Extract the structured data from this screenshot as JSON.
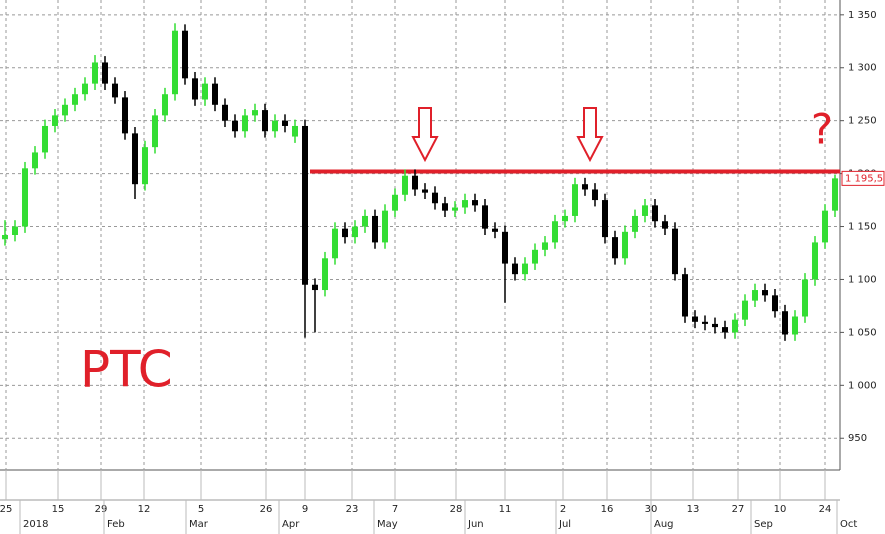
{
  "chart_data": {
    "type": "candlestick",
    "title": "PTC",
    "annotation": "?",
    "series": [
      {
        "up_color": "#33dd33",
        "down_color": "#000000",
        "open": [
          1138,
          1142,
          1150,
          1205,
          1220,
          1245,
          1255,
          1265,
          1275,
          1285,
          1305,
          1285,
          1272,
          1238,
          1190,
          1225,
          1255,
          1275,
          1335,
          1290,
          1270,
          1285,
          1265,
          1250,
          1240,
          1255,
          1260,
          1240,
          1250,
          1235,
          1245,
          1095,
          1090,
          1120,
          1148,
          1140,
          1150,
          1160,
          1135,
          1165,
          1180,
          1198,
          1185,
          1182,
          1172,
          1165,
          1168,
          1175,
          1170,
          1148,
          1145,
          1115,
          1105,
          1115,
          1128,
          1135,
          1155,
          1160,
          1190,
          1185,
          1175,
          1140,
          1120,
          1145,
          1160,
          1170,
          1155,
          1148,
          1105,
          1065,
          1060,
          1058,
          1055,
          1050,
          1062,
          1080,
          1090,
          1085,
          1070,
          1048,
          1065,
          1100,
          1135,
          1165
        ],
        "high": [
          1156,
          1156,
          1211,
          1226,
          1251,
          1261,
          1271,
          1281,
          1291,
          1312,
          1311,
          1291,
          1278,
          1244,
          1231,
          1261,
          1281,
          1342,
          1341,
          1296,
          1291,
          1291,
          1271,
          1256,
          1261,
          1266,
          1266,
          1256,
          1256,
          1251,
          1251,
          1101,
          1126,
          1154,
          1154,
          1156,
          1166,
          1166,
          1171,
          1186,
          1204,
          1204,
          1191,
          1188,
          1178,
          1174,
          1181,
          1181,
          1176,
          1154,
          1151,
          1121,
          1121,
          1134,
          1141,
          1161,
          1166,
          1196,
          1196,
          1191,
          1181,
          1146,
          1151,
          1166,
          1176,
          1176,
          1161,
          1154,
          1111,
          1071,
          1066,
          1064,
          1061,
          1068,
          1086,
          1096,
          1096,
          1091,
          1076,
          1071,
          1106,
          1141,
          1171,
          1199
        ],
        "low": [
          1132,
          1136,
          1144,
          1199,
          1214,
          1239,
          1249,
          1259,
          1269,
          1279,
          1279,
          1266,
          1232,
          1176,
          1184,
          1219,
          1249,
          1269,
          1284,
          1264,
          1264,
          1259,
          1244,
          1234,
          1234,
          1249,
          1234,
          1234,
          1239,
          1229,
          1045,
          1050,
          1084,
          1114,
          1134,
          1134,
          1144,
          1129,
          1129,
          1159,
          1174,
          1179,
          1176,
          1166,
          1159,
          1159,
          1162,
          1164,
          1142,
          1139,
          1078,
          1099,
          1099,
          1109,
          1122,
          1129,
          1149,
          1154,
          1179,
          1169,
          1134,
          1114,
          1114,
          1139,
          1154,
          1149,
          1142,
          1099,
          1059,
          1054,
          1052,
          1049,
          1044,
          1044,
          1056,
          1074,
          1079,
          1064,
          1042,
          1042,
          1059,
          1094,
          1129,
          1159
        ],
        "close": [
          1142,
          1150,
          1205,
          1220,
          1245,
          1255,
          1265,
          1275,
          1285,
          1305,
          1285,
          1272,
          1238,
          1190,
          1225,
          1255,
          1275,
          1335,
          1290,
          1270,
          1285,
          1265,
          1250,
          1240,
          1255,
          1260,
          1240,
          1250,
          1245,
          1245,
          1095,
          1090,
          1120,
          1148,
          1140,
          1150,
          1160,
          1135,
          1165,
          1180,
          1198,
          1185,
          1182,
          1172,
          1165,
          1168,
          1175,
          1170,
          1148,
          1145,
          1115,
          1105,
          1115,
          1128,
          1135,
          1155,
          1160,
          1190,
          1185,
          1175,
          1140,
          1120,
          1145,
          1160,
          1170,
          1155,
          1148,
          1105,
          1065,
          1060,
          1058,
          1055,
          1050,
          1062,
          1080,
          1090,
          1085,
          1070,
          1048,
          1065,
          1100,
          1135,
          1165,
          1195.5
        ],
        "last_label": "1 195,5"
      }
    ],
    "hline": {
      "value": 1202,
      "color": "#e0202a"
    },
    "ylim": [
      920,
      1364
    ],
    "yticks": [
      950,
      {
        "value": 1000,
        "label": "1 000"
      },
      {
        "value": 1050,
        "label": "1 050"
      },
      {
        "value": 1100,
        "label": "1 100"
      },
      {
        "value": 1150,
        "label": "1 150"
      },
      {
        "value": 1200,
        "label": "1 200"
      },
      {
        "value": 1250,
        "label": "1 250"
      },
      {
        "value": 1300,
        "label": "1 300"
      },
      {
        "value": 1350,
        "label": "1 350"
      }
    ],
    "xlim": [
      0,
      84
    ],
    "xticks": [
      {
        "value": 0.6,
        "label": "25"
      },
      {
        "value": 5.8,
        "label": "15"
      },
      {
        "value": 10.1,
        "label": "29"
      },
      {
        "value": 14.4,
        "label": "12"
      },
      {
        "value": 20.1,
        "label": "5"
      },
      {
        "value": 26.6,
        "label": "26"
      },
      {
        "value": 30.5,
        "label": "9"
      },
      {
        "value": 35.2,
        "label": "23"
      },
      {
        "value": 39.5,
        "label": "7"
      },
      {
        "value": 45.6,
        "label": "28"
      },
      {
        "value": 50.5,
        "label": "11"
      },
      {
        "value": 56.3,
        "label": "2"
      },
      {
        "value": 60.7,
        "label": "16"
      },
      {
        "value": 65.1,
        "label": "30"
      },
      {
        "value": 69.3,
        "label": "13"
      },
      {
        "value": 73.8,
        "label": "27"
      },
      {
        "value": 78,
        "label": "10"
      },
      {
        "value": 82.5,
        "label": "24"
      }
    ],
    "month_ticks": [
      {
        "value": 2.0,
        "label": "2018"
      },
      {
        "value": 10.4,
        "label": "Feb"
      },
      {
        "value": 18.6,
        "label": "Mar"
      },
      {
        "value": 27.9,
        "label": "Apr"
      },
      {
        "value": 37.4,
        "label": "May"
      },
      {
        "value": 46.5,
        "label": "Jun"
      },
      {
        "value": 55.6,
        "label": "Jul"
      },
      {
        "value": 65.1,
        "label": "Aug"
      },
      {
        "value": 75.1,
        "label": "Sep"
      },
      {
        "value": 83.7,
        "label": "Oct"
      }
    ],
    "grid": true
  }
}
